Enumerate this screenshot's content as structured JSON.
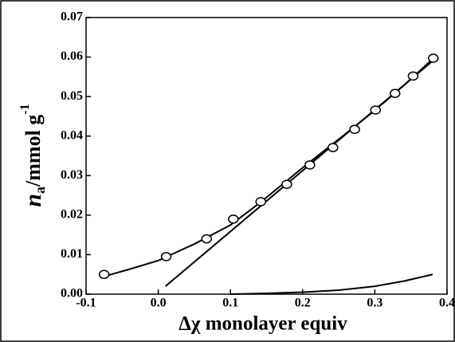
{
  "chart_data": {
    "type": "scatter",
    "xlabel": "Δχ monolayer equiv",
    "ylabel": {
      "symbol": "n",
      "subscript": "a",
      "unit": "/mmol g",
      "superscript": "-1"
    },
    "xlim": [
      -0.1,
      0.4
    ],
    "xticks": [
      -0.1,
      {
        "value": 0,
        "label": "0.0"
      },
      0.1,
      0.2,
      0.3,
      0.4
    ],
    "ylim": [
      0,
      0.07
    ],
    "yticks": [
      {
        "value": 0,
        "label": "0.00"
      },
      {
        "value": 0.01,
        "label": "0.01"
      },
      {
        "value": 0.02,
        "label": "0.02"
      },
      {
        "value": 0.03,
        "label": "0.03"
      },
      {
        "value": 0.04,
        "label": "0.04"
      },
      {
        "value": 0.05,
        "label": "0.05"
      },
      {
        "value": 0.06,
        "label": "0.06"
      },
      {
        "value": 0.07,
        "label": "0.07"
      }
    ],
    "points": {
      "color": "#000000",
      "x": [
        -0.075,
        0.011,
        0.067,
        0.104,
        0.142,
        0.178,
        0.21,
        0.242,
        0.272,
        0.301,
        0.328,
        0.353,
        0.381
      ],
      "values": [
        0.005,
        0.0095,
        0.014,
        0.019,
        0.0234,
        0.0278,
        0.0327,
        0.0371,
        0.0417,
        0.0466,
        0.0508,
        0.0552,
        0.0597
      ]
    },
    "lines": [
      {
        "color": "#000000",
        "x": [
          -0.075,
          -0.04,
          0,
          0.05,
          0.1,
          0.14,
          0.2,
          0.25,
          0.3,
          0.34,
          0.38
        ],
        "values": [
          0.0045,
          0.0063,
          0.0085,
          0.0127,
          0.0175,
          0.023,
          0.032,
          0.0392,
          0.0465,
          0.0528,
          0.0595
        ]
      },
      {
        "color": "#000000",
        "x": [
          0.01,
          0.38
        ],
        "values": [
          0.002,
          0.059
        ]
      },
      {
        "color": "#000000",
        "x": [
          0.1,
          0.15,
          0.2,
          0.25,
          0.3,
          0.34,
          0.38
        ],
        "values": [
          0,
          0.0002,
          0.0005,
          0.001,
          0.002,
          0.0033,
          0.005
        ]
      }
    ]
  }
}
